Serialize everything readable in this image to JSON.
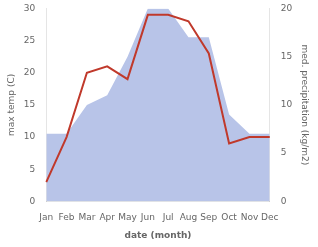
{
  "chart_data": {
    "type": "line",
    "categories": [
      "Jan",
      "Feb",
      "Mar",
      "Apr",
      "May",
      "Jun",
      "Jul",
      "Aug",
      "Sep",
      "Oct",
      "Nov",
      "Dec"
    ],
    "xlabel": "date (month)",
    "ylabel": "max temp (C)",
    "y2label": "med. precipitation (kg/m2)",
    "ylim": [
      0,
      30
    ],
    "yticks": [
      0,
      5,
      10,
      15,
      20,
      25,
      30
    ],
    "y2lim": [
      0,
      20
    ],
    "y2ticks": [
      0,
      5,
      10,
      15,
      20
    ],
    "grid": false,
    "series": [
      {
        "type": "area",
        "axis": "y2",
        "color": "#b8c4e8",
        "values": [
          7,
          7,
          10,
          11,
          15,
          20,
          20,
          17,
          17,
          9,
          7,
          7
        ]
      },
      {
        "type": "line",
        "color": "#c0392b",
        "values": [
          3,
          10,
          20,
          21,
          19,
          29,
          29,
          28,
          23,
          9,
          10,
          10
        ]
      }
    ]
  }
}
